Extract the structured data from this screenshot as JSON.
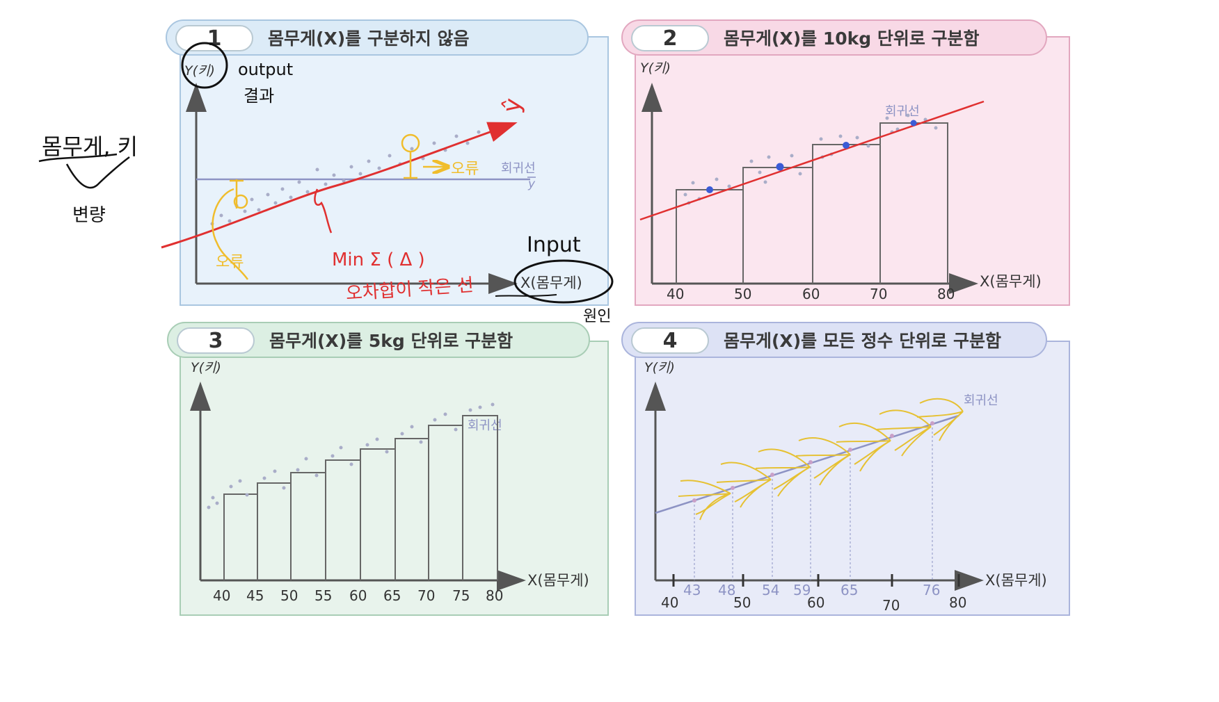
{
  "colors": {
    "panel1_bg": "#e8f2fb",
    "panel1_border": "#a9c6e0",
    "panel2_bg": "#fbe6ef",
    "panel2_border": "#e2a7bf",
    "panel3_bg": "#e8f3ec",
    "panel3_border": "#a8cdb5",
    "panel4_bg": "#e8ebf8",
    "panel4_border": "#aab4dc",
    "regression_line": "#8d93c4",
    "annotation_red": "#e03030",
    "annotation_yellow": "#f0bd2c",
    "annotation_black": "#111111"
  },
  "panels": [
    {
      "number": "1",
      "title": "몸무게(X)를 구분하지 않음",
      "y_axis_label": "Y(키)",
      "x_axis_label": "X(몸무게)",
      "line_label": "회귀선",
      "ybar_label": "y"
    },
    {
      "number": "2",
      "title": "몸무게(X)를 10kg 단위로 구분함",
      "y_axis_label": "Y(키)",
      "x_axis_label": "X(몸무게)",
      "line_label": "회귀선",
      "x_ticks": [
        "40",
        "50",
        "60",
        "70",
        "80"
      ]
    },
    {
      "number": "3",
      "title": "몸무게(X)를 5kg 단위로 구분함",
      "y_axis_label": "Y(키)",
      "x_axis_label": "X(몸무게)",
      "line_label": "회귀선",
      "x_ticks": [
        "40",
        "45",
        "50",
        "55",
        "60",
        "65",
        "70",
        "75",
        "80"
      ]
    },
    {
      "number": "4",
      "title": "몸무게(X)를 모든 정수 단위로 구분함",
      "y_axis_label": "Y(키)",
      "x_axis_label": "X(몸무게)",
      "line_label": "회귀선",
      "x_ticks": [
        "40",
        "50",
        "60",
        "70",
        "80"
      ],
      "x_marks": [
        "43",
        "48",
        "54",
        "59",
        "65",
        "76"
      ]
    }
  ],
  "annotations": {
    "left_note": "몸무게, 키",
    "left_note_sub": "변량",
    "output": "output",
    "output_sub": "결과",
    "input": "Input",
    "input_sub": "원인",
    "yhat": "ŷ",
    "error": "오류",
    "error_arrow": "→ 오류",
    "min_formula": "Min Σ ( Δ )",
    "min_formula_sub": "오차합이 작은 선"
  }
}
